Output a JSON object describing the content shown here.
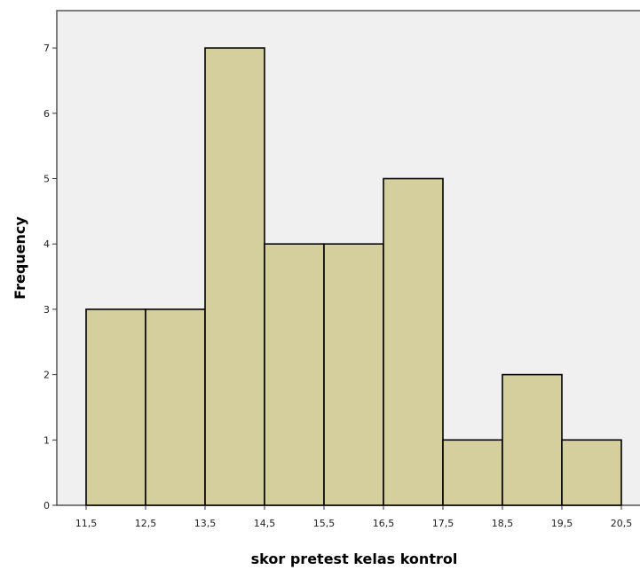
{
  "chart_data": {
    "type": "bar",
    "subtype": "histogram",
    "xlabel": "skor pretest kelas kontrol",
    "ylabel": "Frequency",
    "bins": [
      {
        "start": 11.5,
        "end": 12.5,
        "value": 3
      },
      {
        "start": 12.5,
        "end": 13.5,
        "value": 3
      },
      {
        "start": 13.5,
        "end": 14.5,
        "value": 7
      },
      {
        "start": 14.5,
        "end": 15.5,
        "value": 4
      },
      {
        "start": 15.5,
        "end": 16.5,
        "value": 4
      },
      {
        "start": 16.5,
        "end": 17.5,
        "value": 5
      },
      {
        "start": 17.5,
        "end": 18.5,
        "value": 1
      },
      {
        "start": 18.5,
        "end": 19.5,
        "value": 2
      },
      {
        "start": 19.5,
        "end": 20.5,
        "value": 1
      }
    ],
    "x_tick_labels": [
      "11,5",
      "12,5",
      "13,5",
      "14,5",
      "15,5",
      "16,5",
      "17,5",
      "18,5",
      "19,5",
      "20,5"
    ],
    "y_ticks": [
      0,
      1,
      2,
      3,
      4,
      5,
      6,
      7
    ],
    "xlim": [
      11.5,
      20.5
    ],
    "ylim": [
      0,
      7.4
    ],
    "grid": false,
    "colors": {
      "bar_fill": "#d4cf9c",
      "bar_stroke": "#000000",
      "plot_background": "#f0f0f0",
      "frame": "#555555"
    }
  }
}
